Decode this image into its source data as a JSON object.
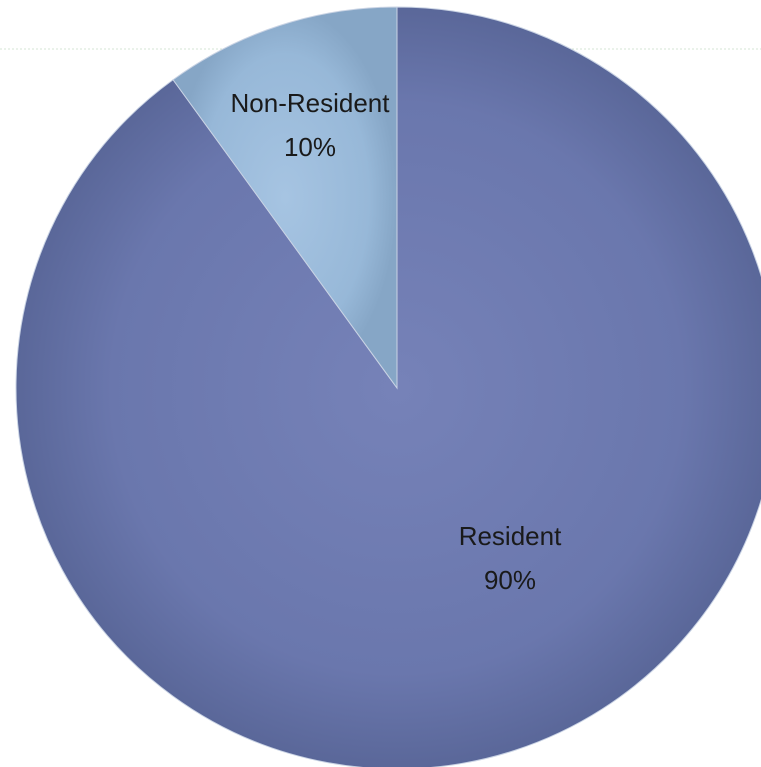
{
  "chart_data": {
    "type": "pie",
    "title": "",
    "categories": [
      "Resident",
      "Non-Resident"
    ],
    "values": [
      90,
      10
    ],
    "labels": [
      {
        "name": "Resident",
        "percent": "90%"
      },
      {
        "name": "Non-Resident",
        "percent": "10%"
      }
    ],
    "start": "12 o'clock",
    "direction": "clockwise",
    "legend": "none",
    "colors": {
      "Resident": "#6674aa",
      "Non-Resident": "#8fb1d2",
      "slice_edge": "#c9d3e4",
      "top_rule": "#d4e4d4"
    }
  }
}
